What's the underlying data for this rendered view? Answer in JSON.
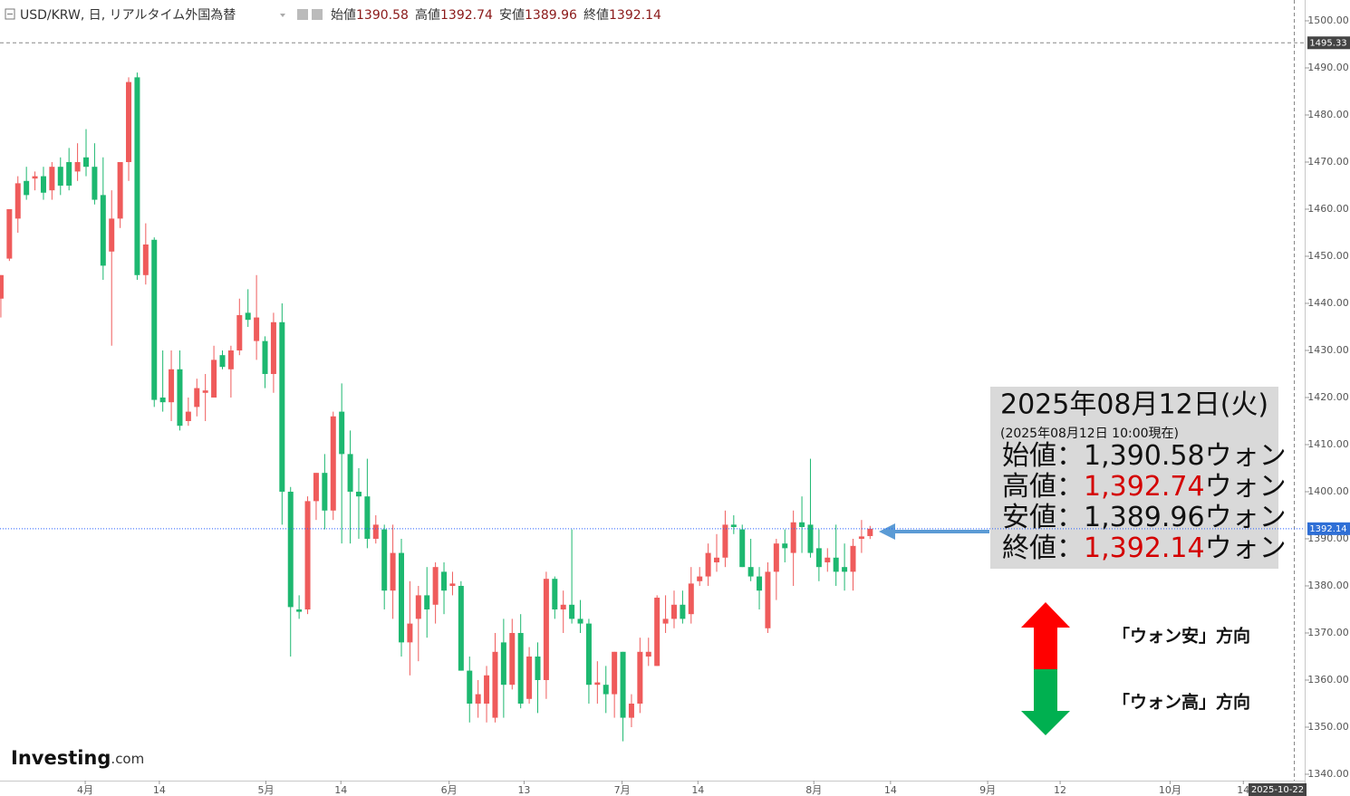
{
  "chart_data": {
    "type": "candlestick",
    "symbol_line": "USD/KRW, 日, リアルタイム外国為替",
    "header_labels": [
      "始値",
      "高値",
      "安値",
      "終値"
    ],
    "up_color": "#ef5b5b",
    "down_color": "#1db870",
    "x": [
      0,
      1,
      2,
      3,
      4,
      5,
      6,
      7,
      8,
      9,
      10,
      11,
      12,
      13,
      14,
      15,
      16,
      17,
      18,
      19,
      20,
      21,
      22,
      23,
      24,
      25,
      26,
      27,
      28,
      29,
      30,
      31,
      32,
      33,
      34,
      35,
      36,
      37,
      38,
      39,
      40,
      41,
      42,
      43,
      44,
      45,
      46,
      47,
      48,
      49,
      50,
      51,
      52,
      53,
      54,
      55,
      56,
      57,
      58,
      59,
      60,
      61,
      62,
      63,
      64,
      65,
      66,
      67,
      68,
      69,
      70,
      71,
      72,
      73,
      74,
      75,
      76,
      77,
      78,
      79,
      80,
      81,
      82,
      83,
      84,
      85,
      86,
      87,
      88,
      89,
      90,
      91,
      92,
      93,
      94,
      95,
      96,
      97,
      98,
      99,
      100,
      101,
      102
    ],
    "open": [
      1441,
      1449.5,
      1458,
      1466,
      1466.5,
      1467,
      1464,
      1469,
      1470,
      1468,
      1471,
      1469,
      1463,
      1451,
      1458,
      1470,
      1488,
      1446,
      1453.5,
      1420,
      1419,
      1426,
      1415,
      1418,
      1421,
      1420,
      1429,
      1426,
      1430,
      1438,
      1432,
      1432,
      1425,
      1436,
      1400,
      1375,
      1375,
      1398,
      1404,
      1396,
      1417,
      1408,
      1400,
      1399,
      1390,
      1392,
      1379,
      1387,
      1368,
      1373,
      1378,
      1376,
      1383,
      1380,
      1380,
      1362,
      1355,
      1355,
      1352,
      1368,
      1359,
      1370,
      1356,
      1365,
      1360,
      1381.5,
      1375,
      1376,
      1373,
      1372,
      1359,
      1359,
      1357,
      1366,
      1352,
      1355,
      1365,
      1363,
      1372,
      1373,
      1376,
      1374,
      1381,
      1382,
      1385,
      1386,
      1393,
      1392,
      1384,
      1382,
      1371,
      1383,
      1389,
      1387,
      1393.5,
      1393,
      1388,
      1385,
      1386,
      1384,
      1383,
      1390,
      1390.58
    ],
    "high": [
      1446,
      1460,
      1467,
      1469,
      1468,
      1469,
      1470,
      1471,
      1473,
      1474,
      1477,
      1474,
      1471,
      1464,
      1469,
      1488,
      1489,
      1457,
      1454,
      1430,
      1430,
      1430,
      1420,
      1424,
      1425,
      1431,
      1430,
      1431,
      1441,
      1443,
      1446,
      1433,
      1438,
      1440,
      1401,
      1378,
      1399,
      1404,
      1408,
      1417,
      1423,
      1413,
      1405,
      1407,
      1395,
      1393,
      1393,
      1390,
      1381,
      1380,
      1384,
      1385,
      1385,
      1383,
      1381,
      1365,
      1360,
      1363,
      1370,
      1373,
      1373,
      1374,
      1367,
      1368,
      1383,
      1382,
      1379,
      1392,
      1377,
      1373,
      1364,
      1363,
      1366,
      1366,
      1357,
      1369,
      1369,
      1378,
      1378,
      1379,
      1379,
      1384,
      1384,
      1389,
      1391,
      1396,
      1395,
      1393,
      1390,
      1384,
      1385,
      1390,
      1392,
      1396,
      1399,
      1407,
      1392,
      1388,
      1393,
      1389,
      1390,
      1394,
      1392.74
    ],
    "low": [
      1437,
      1449,
      1455,
      1462,
      1464,
      1462,
      1462,
      1463,
      1464,
      1466,
      1467,
      1461,
      1445,
      1431,
      1456,
      1466,
      1445,
      1444,
      1418,
      1417,
      1415,
      1413,
      1414,
      1416,
      1415,
      1420,
      1426,
      1420,
      1429,
      1435,
      1428,
      1422,
      1421,
      1393,
      1365,
      1373,
      1374,
      1394,
      1392,
      1394,
      1389,
      1389,
      1390,
      1388,
      1389,
      1375,
      1373,
      1365,
      1361,
      1364,
      1369,
      1372,
      1374,
      1378,
      1362,
      1351,
      1352,
      1351,
      1351,
      1352,
      1358,
      1354,
      1355,
      1353,
      1356,
      1373,
      1370,
      1372,
      1370,
      1355,
      1355,
      1353,
      1352,
      1347,
      1350,
      1353,
      1363,
      1363,
      1370,
      1371,
      1372,
      1372,
      1380,
      1380,
      1383,
      1384,
      1391,
      1384,
      1381,
      1375,
      1370,
      1377,
      1385,
      1380,
      1387,
      1386,
      1381,
      1383,
      1380,
      1379,
      1379,
      1387,
      1389.96
    ],
    "close": [
      1446,
      1460,
      1465.5,
      1463,
      1467,
      1463.5,
      1469,
      1465,
      1465,
      1470,
      1469,
      1462,
      1448,
      1458,
      1470,
      1487,
      1446,
      1452.5,
      1419.5,
      1419,
      1426,
      1414,
      1417,
      1422,
      1421.5,
      1428,
      1426.5,
      1430,
      1437.5,
      1436.5,
      1437,
      1425,
      1436,
      1400,
      1375.5,
      1374.5,
      1398,
      1404,
      1396,
      1416,
      1408,
      1400,
      1399,
      1390,
      1393,
      1379,
      1387,
      1368,
      1372,
      1378,
      1375,
      1384,
      1379,
      1380.5,
      1362,
      1355,
      1357,
      1361,
      1366,
      1359,
      1370,
      1355,
      1365,
      1360,
      1381.5,
      1375,
      1376,
      1373,
      1372,
      1359,
      1359.5,
      1357,
      1366,
      1352,
      1355,
      1366,
      1366,
      1377.5,
      1373,
      1376,
      1373,
      1380.5,
      1382,
      1387,
      1386,
      1393,
      1392.5,
      1384,
      1382,
      1379,
      1383,
      1389,
      1388,
      1393.5,
      1392.5,
      1387,
      1384,
      1386,
      1383,
      1383,
      1388.5,
      1390.5,
      1392.14
    ],
    "xlim": [
      -0.1,
      153
    ],
    "xticks": [
      {
        "value": 9.9,
        "label": "4月"
      },
      {
        "value": 18.6,
        "label": "14"
      },
      {
        "value": 31.1,
        "label": "5月"
      },
      {
        "value": 39.9,
        "label": "14"
      },
      {
        "value": 52.6,
        "label": "6月"
      },
      {
        "value": 61.4,
        "label": "13"
      },
      {
        "value": 72.9,
        "label": "7月"
      },
      {
        "value": 81.8,
        "label": "14"
      },
      {
        "value": 95.4,
        "label": "8月"
      },
      {
        "value": 104.4,
        "label": "14"
      },
      {
        "value": 115.8,
        "label": "9月"
      },
      {
        "value": 124.3,
        "label": "12"
      },
      {
        "value": 137.2,
        "label": "10月"
      },
      {
        "value": 145.8,
        "label": "14"
      }
    ],
    "ylim": [
      1338.65,
      1504.42
    ],
    "yticks": [
      {
        "value": 1340,
        "label": "1340.00"
      },
      {
        "value": 1350,
        "label": "1350.00"
      },
      {
        "value": 1360,
        "label": "1360.00"
      },
      {
        "value": 1370,
        "label": "1370.00"
      },
      {
        "value": 1380,
        "label": "1380.00"
      },
      {
        "value": 1390,
        "label": "1390.00"
      },
      {
        "value": 1400,
        "label": "1400.00"
      },
      {
        "value": 1410,
        "label": "1410.00"
      },
      {
        "value": 1420,
        "label": "1420.00"
      },
      {
        "value": 1430,
        "label": "1430.00"
      },
      {
        "value": 1440,
        "label": "1440.00"
      },
      {
        "value": 1450,
        "label": "1450.00"
      },
      {
        "value": 1460,
        "label": "1460.00"
      },
      {
        "value": 1470,
        "label": "1470.00"
      },
      {
        "value": 1480,
        "label": "1480.00"
      },
      {
        "value": 1490,
        "label": "1490.00"
      },
      {
        "value": 1500,
        "label": "1500.00"
      }
    ],
    "crosshair": {
      "price": 1495.33,
      "date": "2025-10-22"
    },
    "info_box": {
      "date": "2025年08月12日(火)",
      "note": "(2025年08月12日 10:00現在)",
      "rows": [
        {
          "label": "始値：",
          "value": "1,390.58",
          "unit": "ウォン",
          "color": "#111111"
        },
        {
          "label": "高値：",
          "value": "1,392.74",
          "unit": "ウォン",
          "color": "#d40000"
        },
        {
          "label": "安値：",
          "value": "1,389.96",
          "unit": "ウォン",
          "color": "#111111"
        },
        {
          "label": "終値：",
          "value": "1,392.14",
          "unit": "ウォン",
          "color": "#d40000"
        }
      ]
    },
    "annotations": [
      "「ウォン安」方向",
      "「ウォン高」方向"
    ],
    "logo": {
      "main": "Investing",
      "suffix": ".com"
    }
  }
}
